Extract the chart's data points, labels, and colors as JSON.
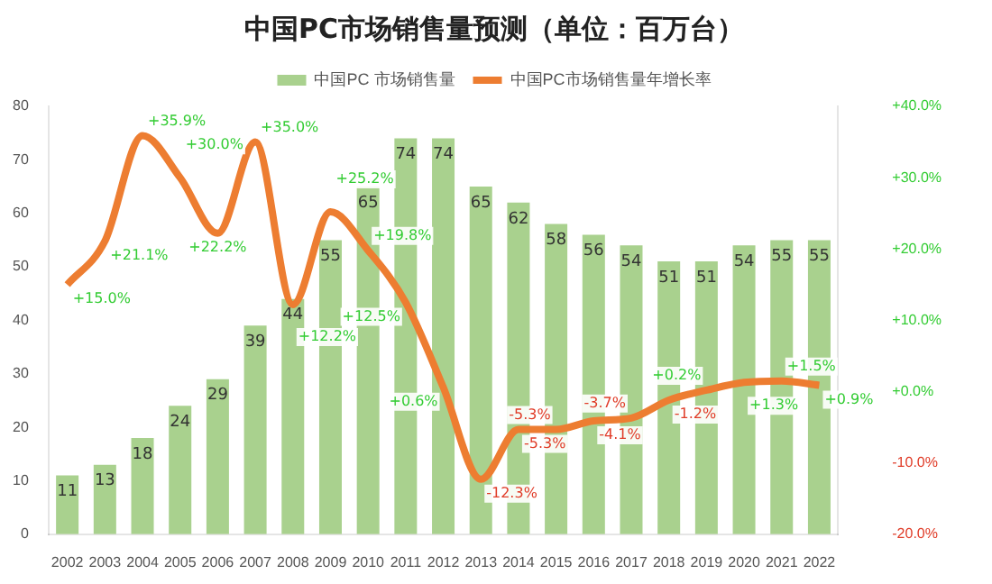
{
  "chart_data": {
    "type": "bar",
    "title": "中国PC市场销售量预测（单位：百万台）",
    "categories": [
      "2002",
      "2003",
      "2004",
      "2005",
      "2006",
      "2007",
      "2008",
      "2009",
      "2010",
      "2011",
      "2012",
      "2013",
      "2014",
      "2015",
      "2016",
      "2017",
      "2018",
      "2019",
      "2020",
      "2021",
      "2022"
    ],
    "series": [
      {
        "name": "中国PC 市场销售量",
        "color": "#a9d18e",
        "values": [
          11,
          13,
          18,
          24,
          29,
          39,
          44,
          55,
          65,
          74,
          74,
          65,
          62,
          58,
          56,
          54,
          51,
          51,
          54,
          55,
          55
        ],
        "data_labels": true
      },
      {
        "name": "中国PC市场销售量年增长率",
        "type": "line",
        "axis": "y2",
        "color": "#ed7d31",
        "values": [
          15.0,
          21.1,
          35.9,
          30.0,
          22.2,
          35.0,
          12.2,
          25.2,
          19.8,
          12.5,
          0.6,
          -12.3,
          -5.3,
          -5.3,
          -4.1,
          -3.7,
          -1.2,
          0.2,
          1.3,
          1.5,
          0.9
        ],
        "value_labels": [
          "+15.0%",
          "+21.1%",
          "+35.9%",
          "+30.0%",
          "+22.2%",
          "+35.0%",
          "+12.2%",
          "+25.2%",
          "+19.8%",
          "+12.5%",
          "+0.6%",
          "-12.3%",
          "-5.3%",
          "-5.3%",
          "-4.1%",
          "-3.7%",
          "-1.2%",
          "+0.2%",
          "+1.3%",
          "+1.5%",
          "+0.9%"
        ]
      }
    ],
    "ylim": [
      0,
      80
    ],
    "yticks": [
      0,
      10,
      20,
      30,
      40,
      50,
      60,
      70,
      80
    ],
    "y2lim": [
      -20,
      40
    ],
    "y2ticks": [
      {
        "value": -20,
        "label": "-20.0%"
      },
      {
        "value": -10,
        "label": "-10.0%"
      },
      {
        "value": 0,
        "label": "+0.0%"
      },
      {
        "value": 10,
        "label": "+10.0%"
      },
      {
        "value": 20,
        "label": "+20.0%"
      },
      {
        "value": 30,
        "label": "+30.0%"
      },
      {
        "value": 40,
        "label": "+40.0%"
      }
    ],
    "grid": false,
    "legend": "top",
    "marker": "none"
  }
}
